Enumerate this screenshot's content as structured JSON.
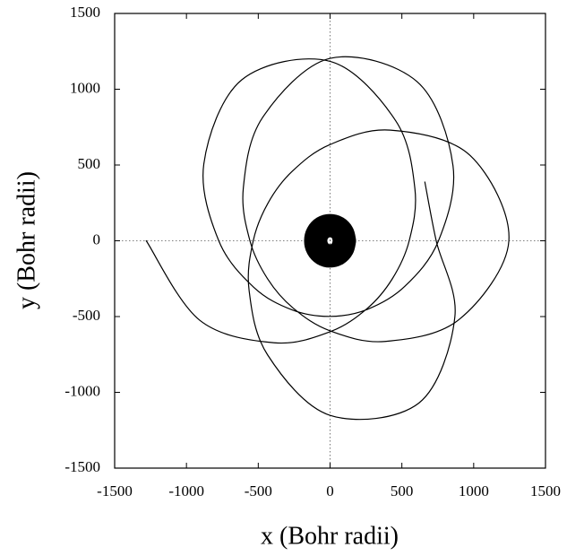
{
  "chart_data": {
    "type": "line",
    "xlabel": "x (Bohr radii)",
    "ylabel": "y (Bohr radii)",
    "xlim": [
      -1500,
      1500
    ],
    "ylim": [
      -1500,
      1500
    ],
    "xticks": [
      -1500,
      -1000,
      -500,
      0,
      500,
      1000,
      1500
    ],
    "yticks": [
      -1500,
      -1000,
      -500,
      0,
      500,
      1000,
      1500
    ],
    "zero_lines": true,
    "series": [
      {
        "color": "#000000",
        "line_width": 1.2,
        "x": [
          -1280,
          -908,
          -388,
          0,
          258,
          434,
          551,
          591,
          457,
          0,
          -614,
          -879,
          -775,
          -531,
          -264,
          0,
          261,
          520,
          755,
          856,
          606,
          0,
          -470,
          -604,
          -558,
          -435,
          -257,
          0,
          383,
          899,
          1245,
          975,
          421,
          0,
          -264,
          -432,
          -535,
          -564,
          -435,
          0,
          618,
          869,
          739,
          660
        ],
        "values": [
          0,
          -524,
          -673,
          -600,
          -447,
          -250,
          0,
          341,
          792,
          1184,
          1063,
          508,
          0,
          -307,
          -456,
          -499,
          -452,
          -301,
          0,
          495,
          1050,
          1204,
          813,
          349,
          0,
          -251,
          -444,
          -594,
          -664,
          -519,
          0,
          563,
          730,
          635,
          458,
          249,
          0,
          -326,
          -753,
          -1152,
          -1071,
          -502,
          0,
          388
        ]
      },
      {
        "color": "#000000",
        "line_width": 26,
        "x": [
          100,
          87,
          50,
          0,
          -50,
          -87,
          -100,
          -87,
          -50,
          0,
          50,
          87,
          100
        ],
        "values": [
          0,
          50,
          87,
          100,
          87,
          50,
          0,
          -50,
          -87,
          -100,
          -87,
          -50,
          0
        ]
      }
    ]
  }
}
